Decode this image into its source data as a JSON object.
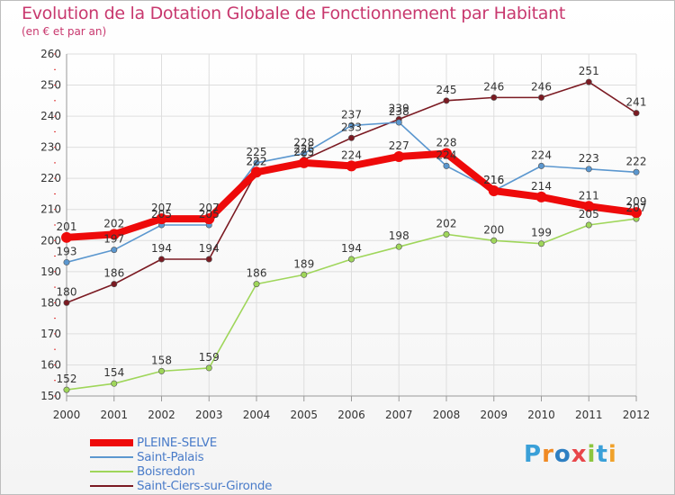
{
  "title": "Evolution de la Dotation Globale de Fonctionnement par Habitant",
  "subtitle": "(en € et par an)",
  "brand": {
    "text": "Proxiti",
    "letters": [
      "P",
      "r",
      "o",
      "x",
      "i",
      "t",
      "i"
    ],
    "colors": [
      "#3aa0d8",
      "#f08a24",
      "#2e7fc2",
      "#e8464a",
      "#8cc63f",
      "#3aa0d8",
      "#f0a12a"
    ]
  },
  "colors": {
    "grid": "#dedede",
    "axis": "#999999",
    "tick_label": "#333333",
    "value_label": "#333333"
  },
  "chart_data": {
    "type": "line",
    "title": "Evolution de la Dotation Globale de Fonctionnement par Habitant",
    "subtitle": "(en € et par an)",
    "xlabel": "",
    "ylabel": "",
    "ylim": [
      150,
      260
    ],
    "yticks": [
      150,
      160,
      170,
      180,
      190,
      200,
      210,
      220,
      230,
      240,
      250,
      260
    ],
    "categories": [
      "2000",
      "2001",
      "2002",
      "2003",
      "2004",
      "2005",
      "2006",
      "2007",
      "2008",
      "2009",
      "2010",
      "2011",
      "2012"
    ],
    "grid": true,
    "legend_position": "bottom-left",
    "series": [
      {
        "name": "Saint-Ciers-sur-Gironde",
        "color": "#7b1a22",
        "values": [
          180,
          186,
          194,
          194,
          222,
          226,
          233,
          239,
          245,
          246,
          246,
          251,
          241
        ],
        "thick": false
      },
      {
        "name": "Boisredon",
        "color": "#9fd65a",
        "values": [
          152,
          154,
          158,
          159,
          186,
          189,
          194,
          198,
          202,
          200,
          199,
          205,
          207
        ],
        "thick": false
      },
      {
        "name": "Saint-Palais",
        "color": "#5b97cf",
        "values": [
          193,
          197,
          205,
          205,
          225,
          228,
          237,
          238,
          224,
          216,
          224,
          223,
          222
        ],
        "thick": false
      },
      {
        "name": "PLEINE-SELVE",
        "color": "#ee0a0a",
        "values": [
          201,
          202,
          207,
          207,
          222,
          225,
          224,
          227,
          228,
          216,
          214,
          211,
          209
        ],
        "thick": true
      }
    ],
    "legend": [
      "PLEINE-SELVE",
      "Saint-Palais",
      "Boisredon",
      "Saint-Ciers-sur-Gironde"
    ]
  }
}
